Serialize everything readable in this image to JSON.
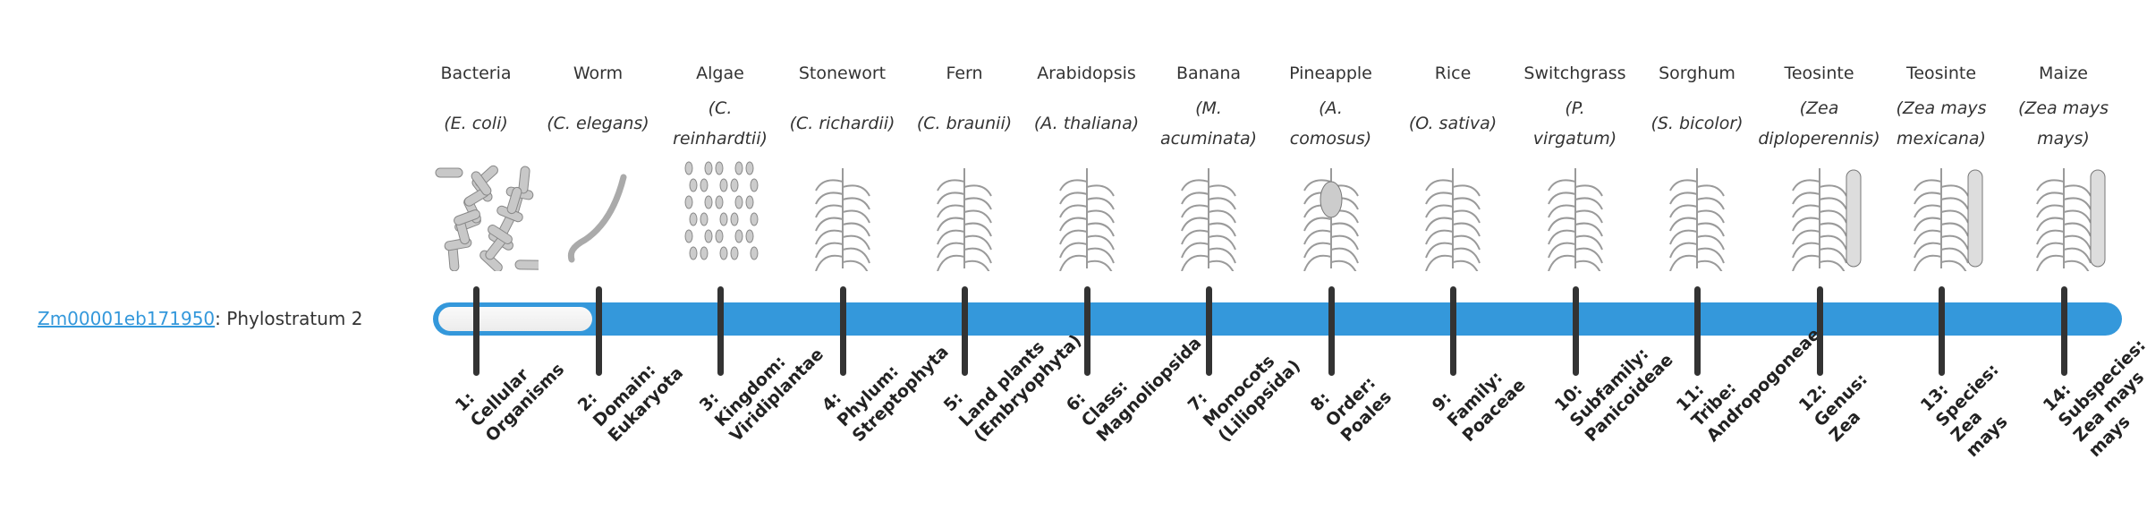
{
  "gene": {
    "id": "Zm00001eb171950",
    "suffix": ": Phylostratum 2"
  },
  "phylostratum": 2,
  "colors": {
    "bar": "#3498db",
    "tick": "#333333",
    "link": "#3498db"
  },
  "organisms": [
    {
      "name": "Bacteria",
      "sci": [
        "(E. coli)"
      ],
      "image": "bacteria-image"
    },
    {
      "name": "Worm",
      "sci": [
        "(C. elegans)"
      ],
      "image": "worm-image"
    },
    {
      "name": "Algae",
      "sci": [
        "(C.",
        "reinhardtii)"
      ],
      "image": "algae-image"
    },
    {
      "name": "Stonewort",
      "sci": [
        "(C. richardii)"
      ],
      "image": "stonewort-image"
    },
    {
      "name": "Fern",
      "sci": [
        "(C. braunii)"
      ],
      "image": "fern-image"
    },
    {
      "name": "Arabidopsis",
      "sci": [
        "(A. thaliana)"
      ],
      "image": "arabidopsis-image"
    },
    {
      "name": "Banana",
      "sci": [
        "(M.",
        "acuminata)"
      ],
      "image": "banana-image"
    },
    {
      "name": "Pineapple",
      "sci": [
        "(A.",
        "comosus)"
      ],
      "image": "pineapple-image"
    },
    {
      "name": "Rice",
      "sci": [
        "(O. sativa)"
      ],
      "image": "rice-image"
    },
    {
      "name": "Switchgrass",
      "sci": [
        "(P.",
        "virgatum)"
      ],
      "image": "switchgrass-image"
    },
    {
      "name": "Sorghum",
      "sci": [
        "(S. bicolor)"
      ],
      "image": "sorghum-image"
    },
    {
      "name": "Teosinte",
      "sci": [
        "(Zea",
        "diploperennis)"
      ],
      "image": "teosinte-image"
    },
    {
      "name": "Teosinte",
      "sci": [
        "(Zea mays",
        "mexicana)"
      ],
      "image": "teosinte-mexicana-image"
    },
    {
      "name": "Maize",
      "sci": [
        "(Zea mays",
        "mays)"
      ],
      "image": "maize-image"
    }
  ],
  "strata": [
    [
      "1:",
      "Cellular",
      "Organisms"
    ],
    [
      "2:",
      "Domain:",
      "Eukaryota"
    ],
    [
      "3:",
      "Kingdom:",
      "Viridiplantae"
    ],
    [
      "4:",
      "Phylum:",
      "Streptophyta"
    ],
    [
      "5:",
      "Land plants",
      "(Embryophyta)"
    ],
    [
      "6:",
      "Class:",
      "Magnoliopsida"
    ],
    [
      "7:",
      "Monocots",
      "(Liliopsida)"
    ],
    [
      "8:",
      "Order:",
      "Poales"
    ],
    [
      "9:",
      "Family:",
      "Poaceae"
    ],
    [
      "10:",
      "Subfamily:",
      "Panicoideae"
    ],
    [
      "11:",
      "Tribe:",
      "Andropogoneae"
    ],
    [
      "12:",
      "Genus:",
      "Zea"
    ],
    [
      "13:",
      "Species:",
      "Zea",
      "mays"
    ],
    [
      "14:",
      "Subspecies:",
      "Zea mays",
      "mays"
    ]
  ]
}
